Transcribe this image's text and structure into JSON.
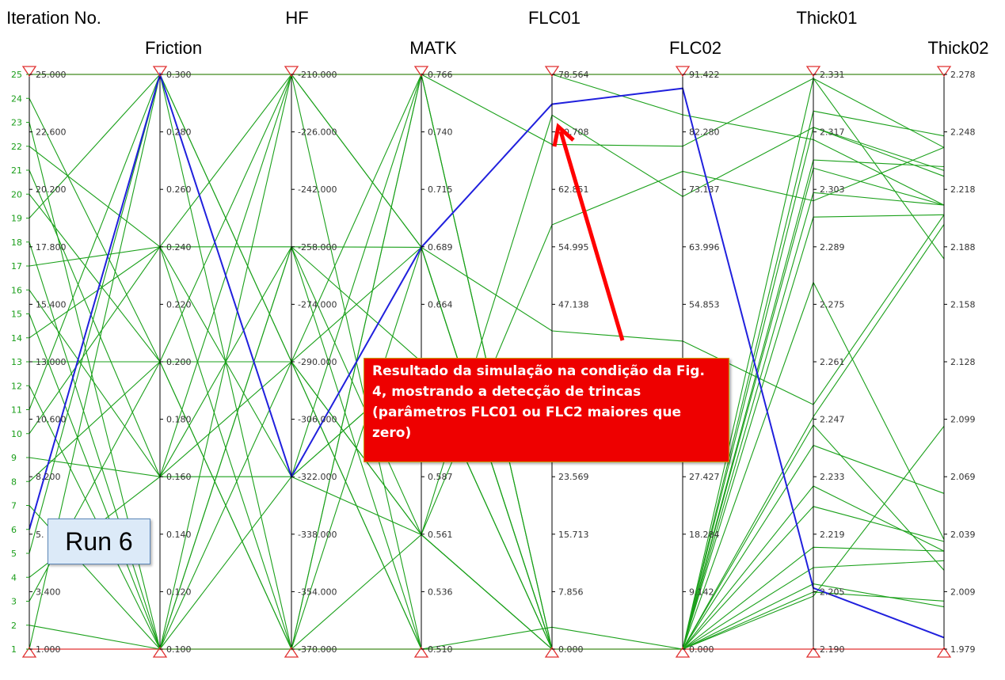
{
  "chart_data": {
    "type": "parallel-coordinates",
    "axes": [
      {
        "name": "Iteration No.",
        "ticks": [
          "25.000",
          "22.600",
          "20.200",
          "17.800",
          "15.400",
          "13.000",
          "10.600",
          "8.200",
          "5.",
          "3.400",
          "1.000"
        ]
      },
      {
        "name": "Friction",
        "ticks": [
          "0.300",
          "0.280",
          "0.260",
          "0.240",
          "0.220",
          "0.200",
          "0.180",
          "0.160",
          "0.140",
          "0.120",
          "0.100"
        ]
      },
      {
        "name": "HF",
        "ticks": [
          "-210.000",
          "-226.000",
          "-242.000",
          "-258.000",
          "-274.000",
          "-290.000",
          "-306.000",
          "-322.000",
          "-338.000",
          "-354.000",
          "-370.000"
        ]
      },
      {
        "name": "MATK",
        "ticks": [
          "0.766",
          "0.740",
          "0.715",
          "0.689",
          "0.664",
          "",
          "",
          "0.587",
          "0.561",
          "0.536",
          "0.510"
        ]
      },
      {
        "name": "FLC01",
        "ticks": [
          "78.564",
          "70.708",
          "62.851",
          "54.995",
          "47.138",
          "",
          "",
          "23.569",
          "15.713",
          "7.856",
          "0.000"
        ]
      },
      {
        "name": "FLC02",
        "ticks": [
          "91.422",
          "82.280",
          "73.137",
          "63.996",
          "54.853",
          "",
          "",
          "27.427",
          "18.284",
          "9.142",
          "0.000"
        ]
      },
      {
        "name": "Thick01",
        "ticks": [
          "2.331",
          "2.317",
          "2.303",
          "2.289",
          "2.275",
          "2.261",
          "2.247",
          "2.233",
          "2.219",
          "2.205",
          "2.190"
        ]
      },
      {
        "name": "Thick02",
        "ticks": [
          "2.278",
          "2.248",
          "2.218",
          "2.188",
          "2.158",
          "2.128",
          "2.099",
          "2.069",
          "2.039",
          "2.009",
          "1.979"
        ]
      }
    ],
    "index_labels": [
      "25",
      "24",
      "23",
      "22",
      "21",
      "20",
      "19",
      "18",
      "17",
      "16",
      "15",
      "14",
      "13",
      "12",
      "11",
      "10",
      "9",
      "8",
      "7",
      "6",
      "5",
      "4",
      "3",
      "2",
      "1"
    ],
    "series": [
      {
        "values": [
          1,
          0.3,
          -210,
          0.766,
          78.564,
          91.422,
          2.331,
          2.278
        ],
        "highlight": false
      },
      {
        "values": [
          2,
          0.1,
          -370,
          0.51,
          0,
          0,
          2.322,
          2.246
        ],
        "highlight": false
      },
      {
        "values": [
          3,
          0.2,
          -290,
          0.689,
          0,
          0,
          2.318,
          2.228
        ],
        "highlight": false
      },
      {
        "values": [
          4,
          0.16,
          -258,
          0.51,
          0,
          0,
          2.31,
          2.23
        ],
        "highlight": false
      },
      {
        "values": [
          5,
          0.3,
          -322,
          0.638,
          0,
          0,
          2.302,
          2.21
        ],
        "highlight": false
      },
      {
        "values": [
          6,
          0.3,
          -322,
          0.689,
          74.5,
          89.2,
          2.205,
          1.985
        ],
        "highlight": true
      },
      {
        "values": [
          7,
          0.1,
          -290,
          0.561,
          0,
          0,
          2.245,
          2.02
        ],
        "highlight": false
      },
      {
        "values": [
          8,
          0.2,
          -370,
          0.561,
          0,
          0,
          2.28,
          2.036
        ],
        "highlight": false
      },
      {
        "values": [
          9,
          0.16,
          -210,
          0.689,
          0,
          0,
          2.23,
          2.03
        ],
        "highlight": false
      },
      {
        "values": [
          10,
          0.24,
          -322,
          0.766,
          0,
          0,
          2.24,
          2.06
        ],
        "highlight": false
      },
      {
        "values": [
          11,
          0.3,
          -290,
          0.51,
          3.0,
          0,
          2.215,
          2.03
        ],
        "highlight": false
      },
      {
        "values": [
          12,
          0.1,
          -258,
          0.638,
          0,
          0,
          2.225,
          2.035
        ],
        "highlight": false
      },
      {
        "values": [
          13,
          0.2,
          -210,
          0.766,
          0,
          0,
          2.21,
          2.025
        ],
        "highlight": false
      },
      {
        "values": [
          14,
          0.24,
          -370,
          0.689,
          0,
          0,
          2.204,
          2.004
        ],
        "highlight": false
      },
      {
        "values": [
          15,
          0.1,
          -322,
          0.561,
          0,
          0,
          2.206,
          2.001
        ],
        "highlight": false
      },
      {
        "values": [
          16,
          0.16,
          -290,
          0.766,
          0,
          0,
          2.203,
          2.095
        ],
        "highlight": false
      },
      {
        "values": [
          17,
          0.24,
          -210,
          0.51,
          0,
          0,
          2.247,
          2.2
        ],
        "highlight": false
      },
      {
        "values": [
          18,
          0.1,
          -258,
          0.689,
          43.5,
          49.0,
          2.25,
          2.205
        ],
        "highlight": false
      },
      {
        "values": [
          19,
          0.3,
          -290,
          0.561,
          73.0,
          72.0,
          2.318,
          2.225
        ],
        "highlight": false
      },
      {
        "values": [
          20,
          0.2,
          -370,
          0.766,
          78.564,
          85.0,
          2.315,
          2.21
        ],
        "highlight": false
      },
      {
        "values": [
          21,
          0.16,
          -322,
          0.638,
          0,
          0,
          2.33,
          2.182
        ],
        "highlight": false
      },
      {
        "values": [
          22,
          0.24,
          -258,
          0.561,
          58.0,
          76.0,
          2.3,
          2.24
        ],
        "highlight": false
      },
      {
        "values": [
          23,
          0.1,
          -210,
          0.689,
          0,
          0,
          2.308,
          2.21
        ],
        "highlight": false
      },
      {
        "values": [
          24,
          0.2,
          -290,
          0.51,
          0,
          0,
          2.296,
          2.205
        ],
        "highlight": false
      },
      {
        "values": [
          25,
          0.3,
          -370,
          0.766,
          69.0,
          80.0,
          2.33,
          2.24
        ],
        "highlight": false
      }
    ]
  },
  "annotation": {
    "callout_text": "Resultado da simulação na condição da Fig. 4, mostrando a detecção de trincas (parâmetros FLC01 ou FLC2 maiores que zero)",
    "run_label": "Run 6"
  }
}
